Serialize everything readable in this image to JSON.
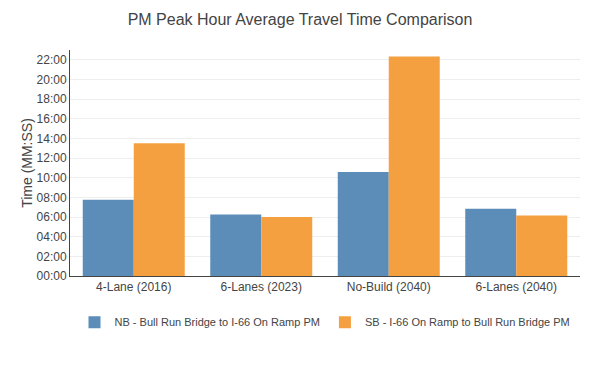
{
  "chart_data": {
    "type": "bar",
    "title": "PM Peak Hour Average Travel Time Comparison",
    "categories": [
      "4-Lane (2016)",
      "6-Lanes (2023)",
      "No-Build (2040)",
      "6-Lanes (2040)"
    ],
    "series": [
      {
        "name": "NB - Bull Run Bridge to I-66 On Ramp PM",
        "color": "#5b8db8",
        "values": [
          465,
          375,
          635,
          410
        ]
      },
      {
        "name": "SB - I-66 On Ramp to Bull Run Bridge PM",
        "color": "#f5a040",
        "values": [
          810,
          360,
          1340,
          370
        ]
      }
    ],
    "ylabel": "Time (MM:SS)",
    "ylim": [
      0,
      1380
    ],
    "yticks": [
      {
        "value": 0,
        "label": "00:00"
      },
      {
        "value": 120,
        "label": "02:00"
      },
      {
        "value": 240,
        "label": "04:00"
      },
      {
        "value": 360,
        "label": "06:00"
      },
      {
        "value": 480,
        "label": "08:00"
      },
      {
        "value": 600,
        "label": "10:00"
      },
      {
        "value": 720,
        "label": "12:00"
      },
      {
        "value": 840,
        "label": "14:00"
      },
      {
        "value": 960,
        "label": "16:00"
      },
      {
        "value": 1080,
        "label": "18:00"
      },
      {
        "value": 1200,
        "label": "20:00"
      },
      {
        "value": 1320,
        "label": "22:00"
      }
    ],
    "grid": true,
    "legend": "bottom"
  }
}
